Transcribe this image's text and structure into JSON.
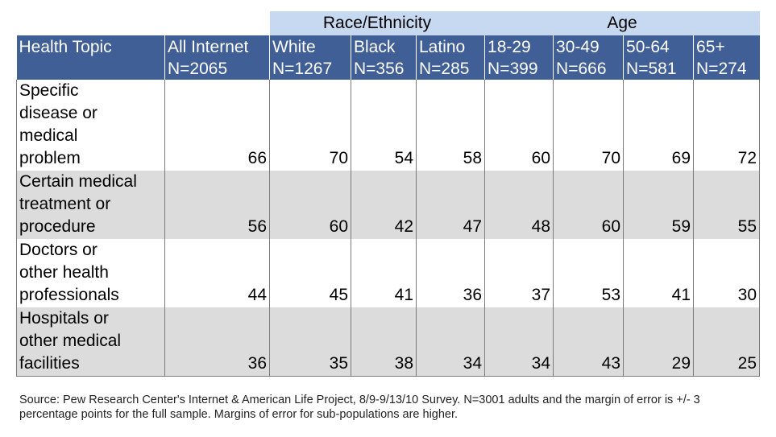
{
  "chart_data": {
    "type": "table",
    "group_headers": [
      {
        "label": "",
        "span": 2
      },
      {
        "label": "Race/Ethnicity",
        "span": 3
      },
      {
        "label": "Age",
        "span": 4
      }
    ],
    "columns": [
      {
        "label": "Health Topic",
        "n": ""
      },
      {
        "label": "All Internet",
        "n": "N=2065"
      },
      {
        "label": "White",
        "n": "N=1267"
      },
      {
        "label": "Black",
        "n": "N=356"
      },
      {
        "label": "Latino",
        "n": "N=285"
      },
      {
        "label": "18-29",
        "n": "N=399"
      },
      {
        "label": "30-49",
        "n": "N=666"
      },
      {
        "label": "50-64",
        "n": "N=581"
      },
      {
        "label": "65+",
        "n": "N=274"
      }
    ],
    "rows": [
      {
        "topic_lines": [
          "Specific",
          "disease or",
          "medical",
          "problem"
        ],
        "values": [
          66,
          70,
          54,
          58,
          60,
          70,
          69,
          72
        ]
      },
      {
        "topic_lines": [
          "Certain medical",
          "treatment or",
          "procedure"
        ],
        "values": [
          56,
          60,
          42,
          47,
          48,
          60,
          59,
          55
        ]
      },
      {
        "topic_lines": [
          "Doctors or",
          "other health",
          "professionals"
        ],
        "values": [
          44,
          45,
          41,
          36,
          37,
          53,
          41,
          30
        ]
      },
      {
        "topic_lines": [
          "Hospitals or",
          "other medical",
          "facilities"
        ],
        "values": [
          36,
          35,
          38,
          34,
          34,
          43,
          29,
          25
        ]
      }
    ],
    "source": "Source: Pew Research Center's Internet & American Life Project, 8/9-9/13/10 Survey. N=3001 adults and the margin of error is +/- 3 percentage points for the full sample. Margins of error for sub-populations are higher."
  },
  "colors": {
    "header_bg": "#3f5f96",
    "group_bg": "#c6d9f1",
    "alt_row_bg": "#dcdcdc"
  }
}
